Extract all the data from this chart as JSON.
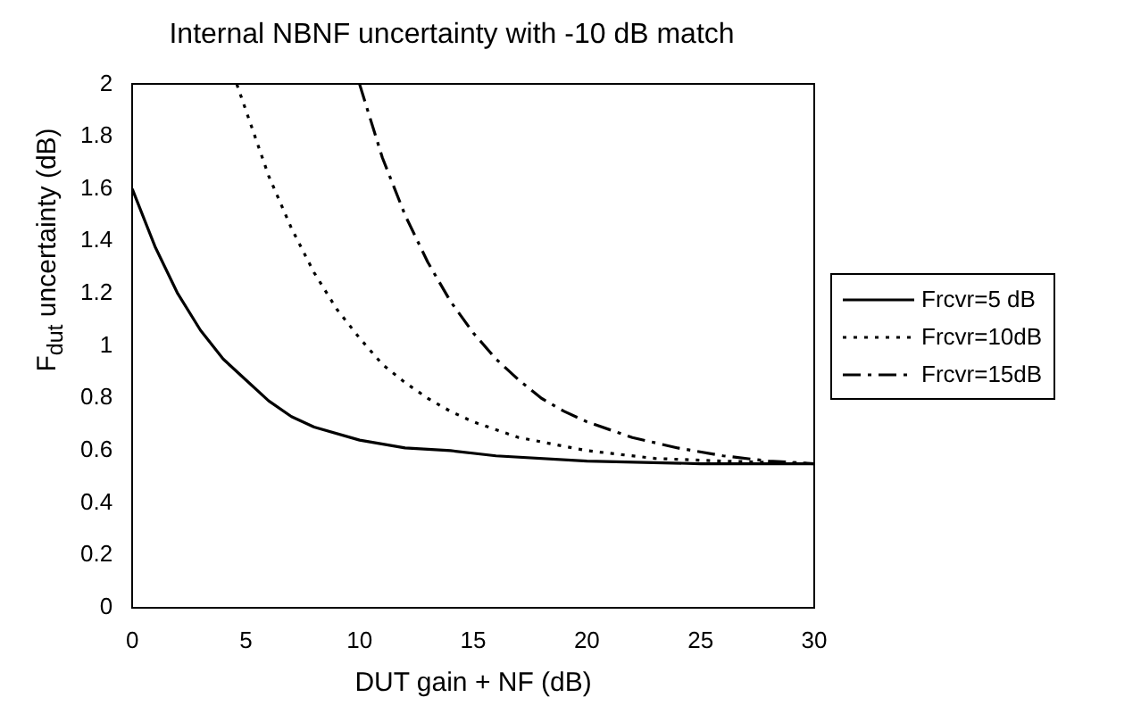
{
  "chart_data": {
    "type": "line",
    "title": "Internal NBNF uncertainty with -10 dB match",
    "xlabel": "DUT gain + NF (dB)",
    "ylabel": "F$_{dut}$ uncertainty (dB)",
    "xlim": [
      0,
      30
    ],
    "xticks": [
      0,
      5,
      10,
      15,
      20,
      25,
      30
    ],
    "ylim": [
      0,
      2
    ],
    "yticks": [
      0,
      0.2,
      0.4,
      0.6,
      0.8,
      1,
      1.2,
      1.4,
      1.6,
      1.8,
      2
    ],
    "grid": false,
    "legend": "right",
    "marker": "none",
    "series": [
      {
        "name": "Frcvr=5 dB",
        "color": "#000000",
        "line_style": "solid",
        "x": [
          0,
          1,
          2,
          3,
          4,
          5,
          6,
          7,
          8,
          10,
          12,
          14,
          16,
          20,
          25,
          30
        ],
        "values": [
          1.6,
          1.38,
          1.2,
          1.06,
          0.95,
          0.87,
          0.79,
          0.73,
          0.69,
          0.64,
          0.61,
          0.6,
          0.58,
          0.56,
          0.55,
          0.55
        ]
      },
      {
        "name": "Frcvr=10dB",
        "color": "#000000",
        "line_style": "dotted",
        "x": [
          4.6,
          5,
          6,
          7,
          8,
          9,
          10,
          11,
          12,
          13,
          14,
          15,
          17,
          20,
          23,
          26,
          30
        ],
        "values": [
          2,
          1.9,
          1.65,
          1.45,
          1.28,
          1.14,
          1.03,
          0.93,
          0.86,
          0.8,
          0.75,
          0.71,
          0.65,
          0.6,
          0.57,
          0.56,
          0.55
        ]
      },
      {
        "name": "Frcvr=15dB",
        "color": "#000000",
        "line_style": "dashed",
        "x": [
          10,
          11,
          12,
          13,
          14,
          15,
          16,
          17,
          18,
          19,
          20,
          22,
          24,
          26,
          28,
          30
        ],
        "values": [
          2,
          1.72,
          1.5,
          1.32,
          1.17,
          1.05,
          0.95,
          0.87,
          0.8,
          0.75,
          0.71,
          0.65,
          0.61,
          0.58,
          0.56,
          0.55
        ]
      }
    ]
  }
}
